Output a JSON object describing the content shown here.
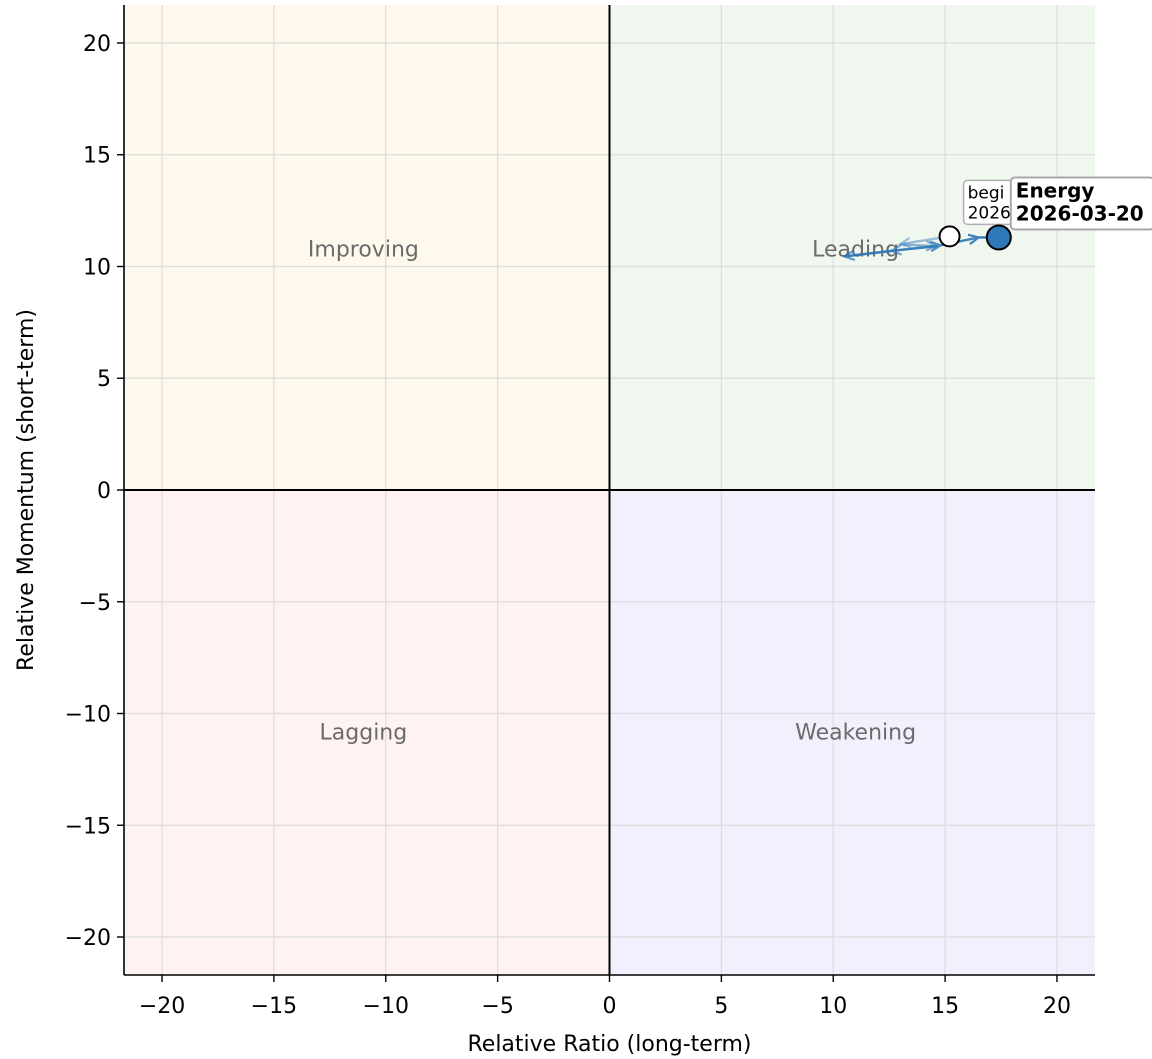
{
  "chart_data": {
    "type": "scatter",
    "title": "",
    "xlabel": "Relative Ratio (long-term)",
    "ylabel": "Relative Momentum (short-term)",
    "xlim": [
      -21.7,
      21.7
    ],
    "ylim": [
      -21.7,
      21.7
    ],
    "xticks": [
      -20,
      -15,
      -10,
      -5,
      0,
      5,
      10,
      15,
      20
    ],
    "yticks": [
      -20,
      -15,
      -10,
      -5,
      0,
      5,
      10,
      15,
      20
    ],
    "grid": true,
    "quadrants": [
      {
        "name": "Improving",
        "x": -11,
        "y": 10.8,
        "color": "#fff8ec"
      },
      {
        "name": "Leading",
        "x": 11,
        "y": 10.8,
        "color": "#f0f7ef"
      },
      {
        "name": "Lagging",
        "x": -11,
        "y": -10.8,
        "color": "#fff2f2"
      },
      {
        "name": "Weakening",
        "x": 11,
        "y": -10.8,
        "color": "#f0f1fc"
      }
    ],
    "series": [
      {
        "name": "Energy",
        "color": "#2e78b7",
        "trail": [
          {
            "x": 15.2,
            "y": 11.35
          },
          {
            "x": 13.0,
            "y": 11.0
          },
          {
            "x": 14.6,
            "y": 10.9
          },
          {
            "x": 12.6,
            "y": 10.7
          },
          {
            "x": 10.5,
            "y": 10.45
          },
          {
            "x": 14.8,
            "y": 10.95
          },
          {
            "x": 16.5,
            "y": 11.3
          },
          {
            "x": 17.4,
            "y": 11.3
          }
        ],
        "begin": {
          "x": 15.2,
          "y": 11.35,
          "label_line1": "begi",
          "label_line2": "2026"
        },
        "end": {
          "x": 17.4,
          "y": 11.3,
          "label_line1": "Energy",
          "label_line2": "2026-03-20"
        }
      }
    ]
  }
}
